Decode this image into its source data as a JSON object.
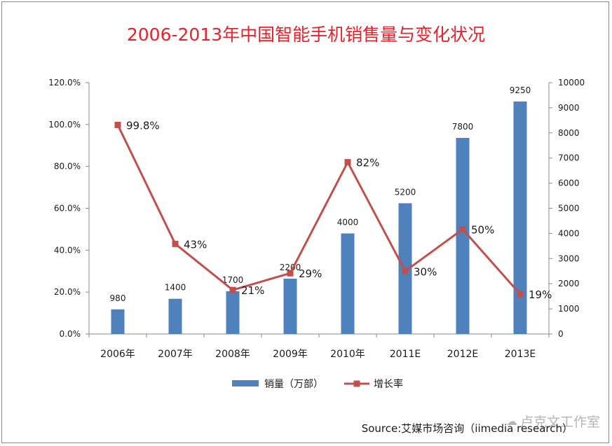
{
  "title": "2006-2013年中国智能手机销售量与变化状况",
  "source": "Source:艾媒市场咨询（iimedia research）",
  "watermark": "卢克文工作室",
  "chart_data": {
    "type": "bar+line",
    "categories": [
      "2006年",
      "2007年",
      "2008年",
      "2009年",
      "2010年",
      "2011E",
      "2012E",
      "2013E"
    ],
    "series": [
      {
        "name": "销量（万部）",
        "type": "bar",
        "axis": "right",
        "color": "#4f81bd",
        "values": [
          980,
          1400,
          1700,
          2200,
          4000,
          5200,
          7800,
          9250
        ],
        "labels": [
          "980",
          "1400",
          "1700",
          "2200",
          "4000",
          "5200",
          "7800",
          "9250"
        ]
      },
      {
        "name": "增长率",
        "type": "line",
        "axis": "left",
        "color": "#c0504d",
        "values": [
          99.8,
          43,
          21,
          29,
          82,
          30,
          50,
          19
        ],
        "labels": [
          "99.8%",
          "43%",
          "21%",
          "29%",
          "82%",
          "30%",
          "50%",
          "19%"
        ]
      }
    ],
    "y_left": {
      "min": 0,
      "max": 120,
      "ticks": [
        "0.0%",
        "20.0%",
        "40.0%",
        "60.0%",
        "80.0%",
        "100.0%",
        "120.0%"
      ],
      "tick_values": [
        0,
        20,
        40,
        60,
        80,
        100,
        120
      ]
    },
    "y_right": {
      "min": 0,
      "max": 10000,
      "ticks": [
        "0",
        "1000",
        "2000",
        "3000",
        "4000",
        "5000",
        "6000",
        "7000",
        "8000",
        "9000",
        "10000"
      ],
      "tick_values": [
        0,
        1000,
        2000,
        3000,
        4000,
        5000,
        6000,
        7000,
        8000,
        9000,
        10000
      ]
    },
    "legend": {
      "position": "bottom",
      "entries": [
        "销量（万部）",
        "增长率"
      ]
    },
    "grid": false
  }
}
